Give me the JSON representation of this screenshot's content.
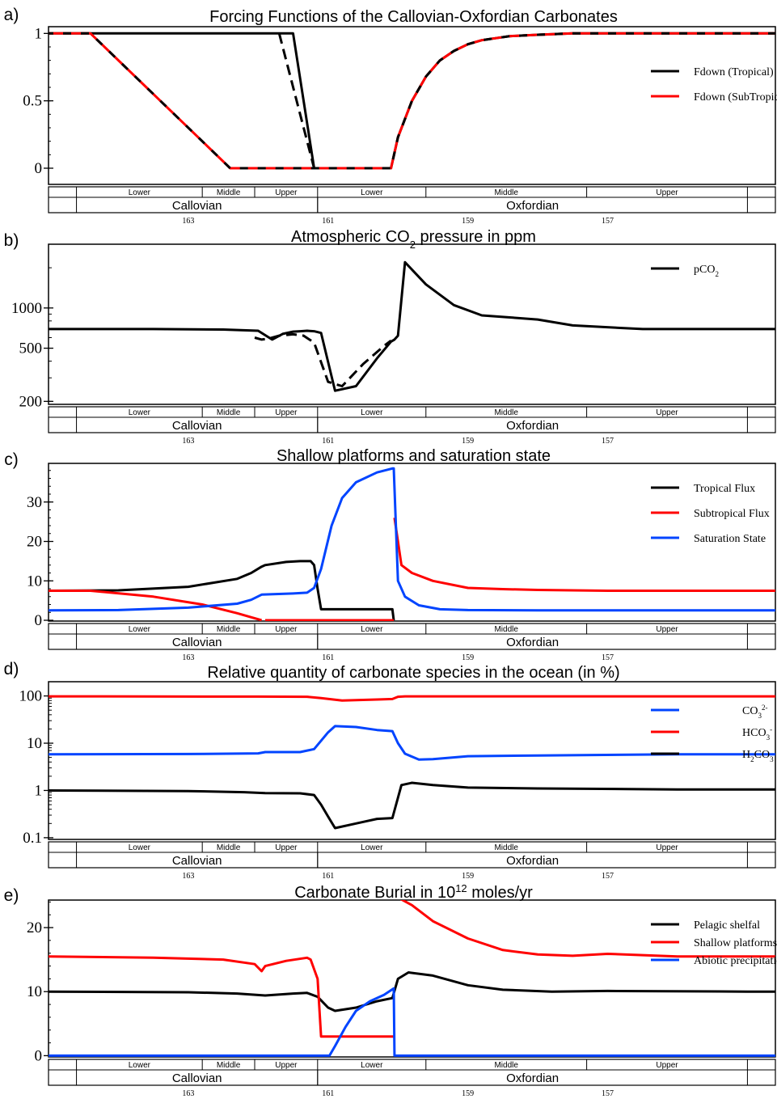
{
  "chart_data": [
    {
      "panel": "a)",
      "type": "line",
      "title": "Forcing Functions of the Callovian-Oxfordian Carbonates",
      "y_scale": "linear",
      "ylim": [
        -0.12,
        1.05
      ],
      "yticks": [
        0,
        0.5,
        1
      ],
      "ytick_labels": [
        "0",
        "0.5",
        "1"
      ],
      "xlim": [
        165,
        154.6
      ],
      "legend_position": "top-right",
      "series": [
        {
          "name": "Fdown (Tropical)",
          "color": "#000000",
          "style": "solid",
          "x": [
            165,
            161.5,
            161.2,
            160.1,
            160.0,
            159.8,
            159.6,
            159.4,
            159.2,
            159.0,
            158.8,
            158.4,
            158.0,
            157.5,
            157.0,
            156.0,
            155.0,
            154.6
          ],
          "y": [
            1,
            1,
            0,
            0,
            0.23,
            0.5,
            0.68,
            0.8,
            0.87,
            0.92,
            0.95,
            0.98,
            0.99,
            1,
            1,
            1,
            1,
            1
          ]
        },
        {
          "name": "",
          "color": "#000000",
          "style": "dashed",
          "x": [
            161.7,
            161.2
          ],
          "y": [
            1,
            0
          ]
        },
        {
          "name": "Fdown (SubTropical)",
          "color": "#ff0000",
          "style": "dash-overlay",
          "x": [
            165,
            164.4,
            162.4,
            161.2,
            160.1,
            160.0,
            159.8,
            159.6,
            159.4,
            159.2,
            159.0,
            158.8,
            158.4,
            158.0,
            157.5,
            157.0,
            156.0,
            155.0,
            154.6
          ],
          "y": [
            1,
            1,
            0,
            0,
            0,
            0.23,
            0.5,
            0.68,
            0.8,
            0.87,
            0.92,
            0.95,
            0.98,
            0.99,
            1,
            1,
            1,
            1,
            1
          ]
        }
      ]
    },
    {
      "panel": "b)",
      "type": "line",
      "title_parts": [
        "Atmospheric CO",
        "2",
        " pressure in ppm"
      ],
      "y_scale": "log",
      "ylim": [
        190,
        3000
      ],
      "yticks": [
        200,
        500,
        1000
      ],
      "ytick_labels": [
        "200",
        "500",
        "1000"
      ],
      "xlim": [
        165,
        154.6
      ],
      "legend_position": "top-right",
      "series": [
        {
          "name_parts": [
            "pCO",
            "2"
          ],
          "color": "#000000",
          "style": "solid",
          "x": [
            165,
            163.5,
            162.5,
            162.0,
            161.8,
            161.65,
            161.5,
            161.4,
            161.3,
            161.2,
            161.1,
            160.9,
            160.6,
            160.3,
            160.1,
            160.05,
            160.0,
            159.9,
            159.6,
            159.2,
            158.8,
            158.4,
            158.0,
            157.5,
            156.5,
            155.5,
            154.6
          ],
          "y": [
            695,
            695,
            690,
            675,
            580,
            640,
            665,
            670,
            675,
            670,
            650,
            240,
            260,
            420,
            560,
            580,
            620,
            2200,
            1500,
            1050,
            880,
            850,
            820,
            740,
            695,
            695,
            695
          ]
        },
        {
          "name": "",
          "color": "#000000",
          "style": "dashed",
          "x": [
            162.05,
            161.95,
            161.85,
            161.7,
            161.5,
            161.35,
            161.2,
            161.0,
            160.8,
            160.5,
            160.2,
            160.1
          ],
          "y": [
            600,
            580,
            590,
            620,
            635,
            620,
            550,
            280,
            260,
            380,
            520,
            570
          ]
        }
      ]
    },
    {
      "panel": "c)",
      "type": "line",
      "title": "Shallow platforms and saturation state",
      "y_scale": "linear",
      "ylim": [
        -0.2,
        39.8
      ],
      "yticks": [
        0,
        10,
        20,
        30
      ],
      "ytick_labels": [
        "0",
        "10",
        "20",
        "30"
      ],
      "xlim": [
        165,
        154.6
      ],
      "legend_position": "top-right",
      "series": [
        {
          "name": "Tropical Flux",
          "color": "#000000",
          "style": "solid",
          "x": [
            165,
            164.0,
            163.0,
            162.3,
            162.1,
            161.95,
            161.9,
            161.6,
            161.4,
            161.25,
            161.2,
            161.15,
            161.1,
            160.08,
            160.06
          ],
          "y": [
            7.5,
            7.6,
            8.5,
            10.5,
            12.0,
            13.6,
            14.0,
            14.8,
            15.0,
            15.0,
            14.0,
            8.0,
            2.8,
            2.8,
            0
          ]
        },
        {
          "name": "Subtropical Flux",
          "color": "#ff0000",
          "style": "solid",
          "x": [
            165,
            164.4,
            163.5,
            162.8,
            162.3,
            161.95,
            161.9,
            160.06,
            160.05,
            160.0,
            159.95,
            159.8,
            159.5,
            159.0,
            158.5,
            158.0,
            157.0,
            156.0,
            155.0,
            154.6
          ],
          "y": [
            7.5,
            7.5,
            6.0,
            4.0,
            1.8,
            0,
            0,
            0,
            26.0,
            20.0,
            14.0,
            12.0,
            10.0,
            8.2,
            7.9,
            7.7,
            7.5,
            7.5,
            7.5,
            7.5
          ],
          "segments": [
            [
              0,
              5
            ],
            [
              6,
              7
            ],
            [
              8,
              19
            ]
          ]
        },
        {
          "name": "Saturation State",
          "color": "#0044ff",
          "style": "solid",
          "x": [
            165,
            164.0,
            163.0,
            162.3,
            162.1,
            161.95,
            161.5,
            161.3,
            161.2,
            161.1,
            160.95,
            160.8,
            160.6,
            160.3,
            160.08,
            160.06,
            160.0,
            159.9,
            159.7,
            159.4,
            159.0,
            158.0,
            156.0,
            154.6
          ],
          "y": [
            2.5,
            2.6,
            3.2,
            4.2,
            5.2,
            6.5,
            6.8,
            7.0,
            8.2,
            13.0,
            24.0,
            31.0,
            35.0,
            37.5,
            38.5,
            38.5,
            10.0,
            6.0,
            3.8,
            2.8,
            2.6,
            2.5,
            2.5,
            2.5
          ]
        }
      ]
    },
    {
      "panel": "d)",
      "type": "line",
      "title": "Relative quantity of carbonate species in the ocean (in %)",
      "y_scale": "log",
      "ylim": [
        0.092,
        200
      ],
      "yticks": [
        0.1,
        1,
        10,
        100
      ],
      "ytick_labels": [
        "0.1",
        "1",
        "10",
        "100"
      ],
      "xlim": [
        165,
        154.6
      ],
      "legend_position": "top-right",
      "series": [
        {
          "name_parts": [
            "CO",
            "3",
            "2-"
          ],
          "color": "#0044ff",
          "style": "solid",
          "x": [
            165,
            163.0,
            162.0,
            161.9,
            161.4,
            161.2,
            161.0,
            160.9,
            160.6,
            160.3,
            160.08,
            160.0,
            159.9,
            159.7,
            159.5,
            159.0,
            158.0,
            156.0,
            154.6
          ],
          "y": [
            5.8,
            5.9,
            6.1,
            6.5,
            6.5,
            7.5,
            17.0,
            23.0,
            22.0,
            19.0,
            18.0,
            10.0,
            6.0,
            4.5,
            4.6,
            5.3,
            5.5,
            5.8,
            5.8
          ]
        },
        {
          "name_parts": [
            "HCO",
            "3",
            "-"
          ],
          "color": "#ff0000",
          "style": "solid",
          "x": [
            165,
            162.0,
            161.3,
            161.1,
            160.8,
            160.3,
            160.08,
            160.0,
            159.9,
            159.5,
            158.0,
            156.0,
            154.6
          ],
          "y": [
            98,
            97,
            96,
            90,
            80,
            84,
            86,
            96,
            98,
            98,
            98,
            98,
            98
          ]
        },
        {
          "name_parts": [
            "H",
            "2",
            "CO",
            "3"
          ],
          "color": "#000000",
          "style": "solid",
          "x": [
            165,
            163.0,
            162.2,
            161.9,
            161.4,
            161.2,
            161.1,
            161.0,
            160.9,
            160.6,
            160.3,
            160.08,
            160.0,
            159.95,
            159.8,
            159.5,
            159.0,
            158.0,
            156.0,
            154.6
          ],
          "y": [
            1.0,
            0.97,
            0.92,
            0.88,
            0.87,
            0.8,
            0.5,
            0.28,
            0.16,
            0.2,
            0.25,
            0.26,
            0.7,
            1.3,
            1.45,
            1.3,
            1.15,
            1.1,
            1.05,
            1.05
          ]
        }
      ]
    },
    {
      "panel": "e)",
      "type": "line",
      "title_parts": [
        "Carbonate Burial in 10",
        "12",
        " moles/yr"
      ],
      "y_scale": "linear",
      "ylim": [
        -0.2,
        24.3
      ],
      "yticks": [
        0,
        10,
        20
      ],
      "ytick_labels": [
        "0",
        "10",
        "20"
      ],
      "xlim": [
        165,
        154.6
      ],
      "legend_position": "top-right",
      "series": [
        {
          "name": "Pelagic shelfal",
          "color": "#000000",
          "style": "solid",
          "x": [
            165,
            163.0,
            162.3,
            161.9,
            161.5,
            161.3,
            161.15,
            161.0,
            160.9,
            160.6,
            160.3,
            160.08,
            160.0,
            159.85,
            159.5,
            159.0,
            158.5,
            157.8,
            157.0,
            155.0,
            154.6
          ],
          "y": [
            10.0,
            9.9,
            9.7,
            9.4,
            9.7,
            9.8,
            9.2,
            7.5,
            7.0,
            7.5,
            8.5,
            9.0,
            12.0,
            13.0,
            12.5,
            11.0,
            10.3,
            10.0,
            10.1,
            10.0,
            10.0
          ]
        },
        {
          "name": "Shallow platforms",
          "color": "#ff0000",
          "style": "solid",
          "x": [
            165,
            163.5,
            162.5,
            162.05,
            161.95,
            161.9,
            161.6,
            161.3,
            161.25,
            161.15,
            161.1,
            160.06,
            160.05,
            159.8,
            159.5,
            159.0,
            158.5,
            158.0,
            157.5,
            157.0,
            156.0,
            155.0,
            154.6
          ],
          "y": [
            15.5,
            15.3,
            15.0,
            14.3,
            13.2,
            14.0,
            14.8,
            15.3,
            15.0,
            12.0,
            3.0,
            3.0,
            25.0,
            23.5,
            21.0,
            18.3,
            16.5,
            15.8,
            15.6,
            15.9,
            15.5,
            15.5,
            15.5
          ],
          "segments": [
            [
              0,
              11
            ],
            [
              12,
              22
            ]
          ]
        },
        {
          "name": "Abiotic precipitation",
          "color": "#0044ff",
          "style": "solid",
          "x": [
            165,
            160.98,
            160.9,
            160.75,
            160.6,
            160.4,
            160.2,
            160.06,
            160.05,
            154.6
          ],
          "y": [
            0,
            0,
            1.5,
            4.5,
            7.0,
            8.5,
            9.5,
            10.5,
            0,
            0
          ]
        }
      ]
    }
  ],
  "timescale": {
    "substages": [
      {
        "label": "Lower",
        "from": 164.6,
        "to": 162.8
      },
      {
        "label": "Middle",
        "from": 162.8,
        "to": 162.05
      },
      {
        "label": "Upper",
        "from": 162.05,
        "to": 161.15
      },
      {
        "label": "Lower",
        "from": 161.15,
        "to": 159.6
      },
      {
        "label": "Middle",
        "from": 159.6,
        "to": 157.3
      },
      {
        "label": "Upper",
        "from": 157.3,
        "to": 155.0
      }
    ],
    "stages": [
      {
        "label": "Callovian",
        "from": 164.6,
        "to": 161.15
      },
      {
        "label": "Oxfordian",
        "from": 161.15,
        "to": 155.0
      }
    ],
    "ages": [
      "163",
      "161",
      "159",
      "157"
    ]
  },
  "panel_labels": [
    "a)",
    "b)",
    "c)",
    "d)",
    "e)"
  ]
}
